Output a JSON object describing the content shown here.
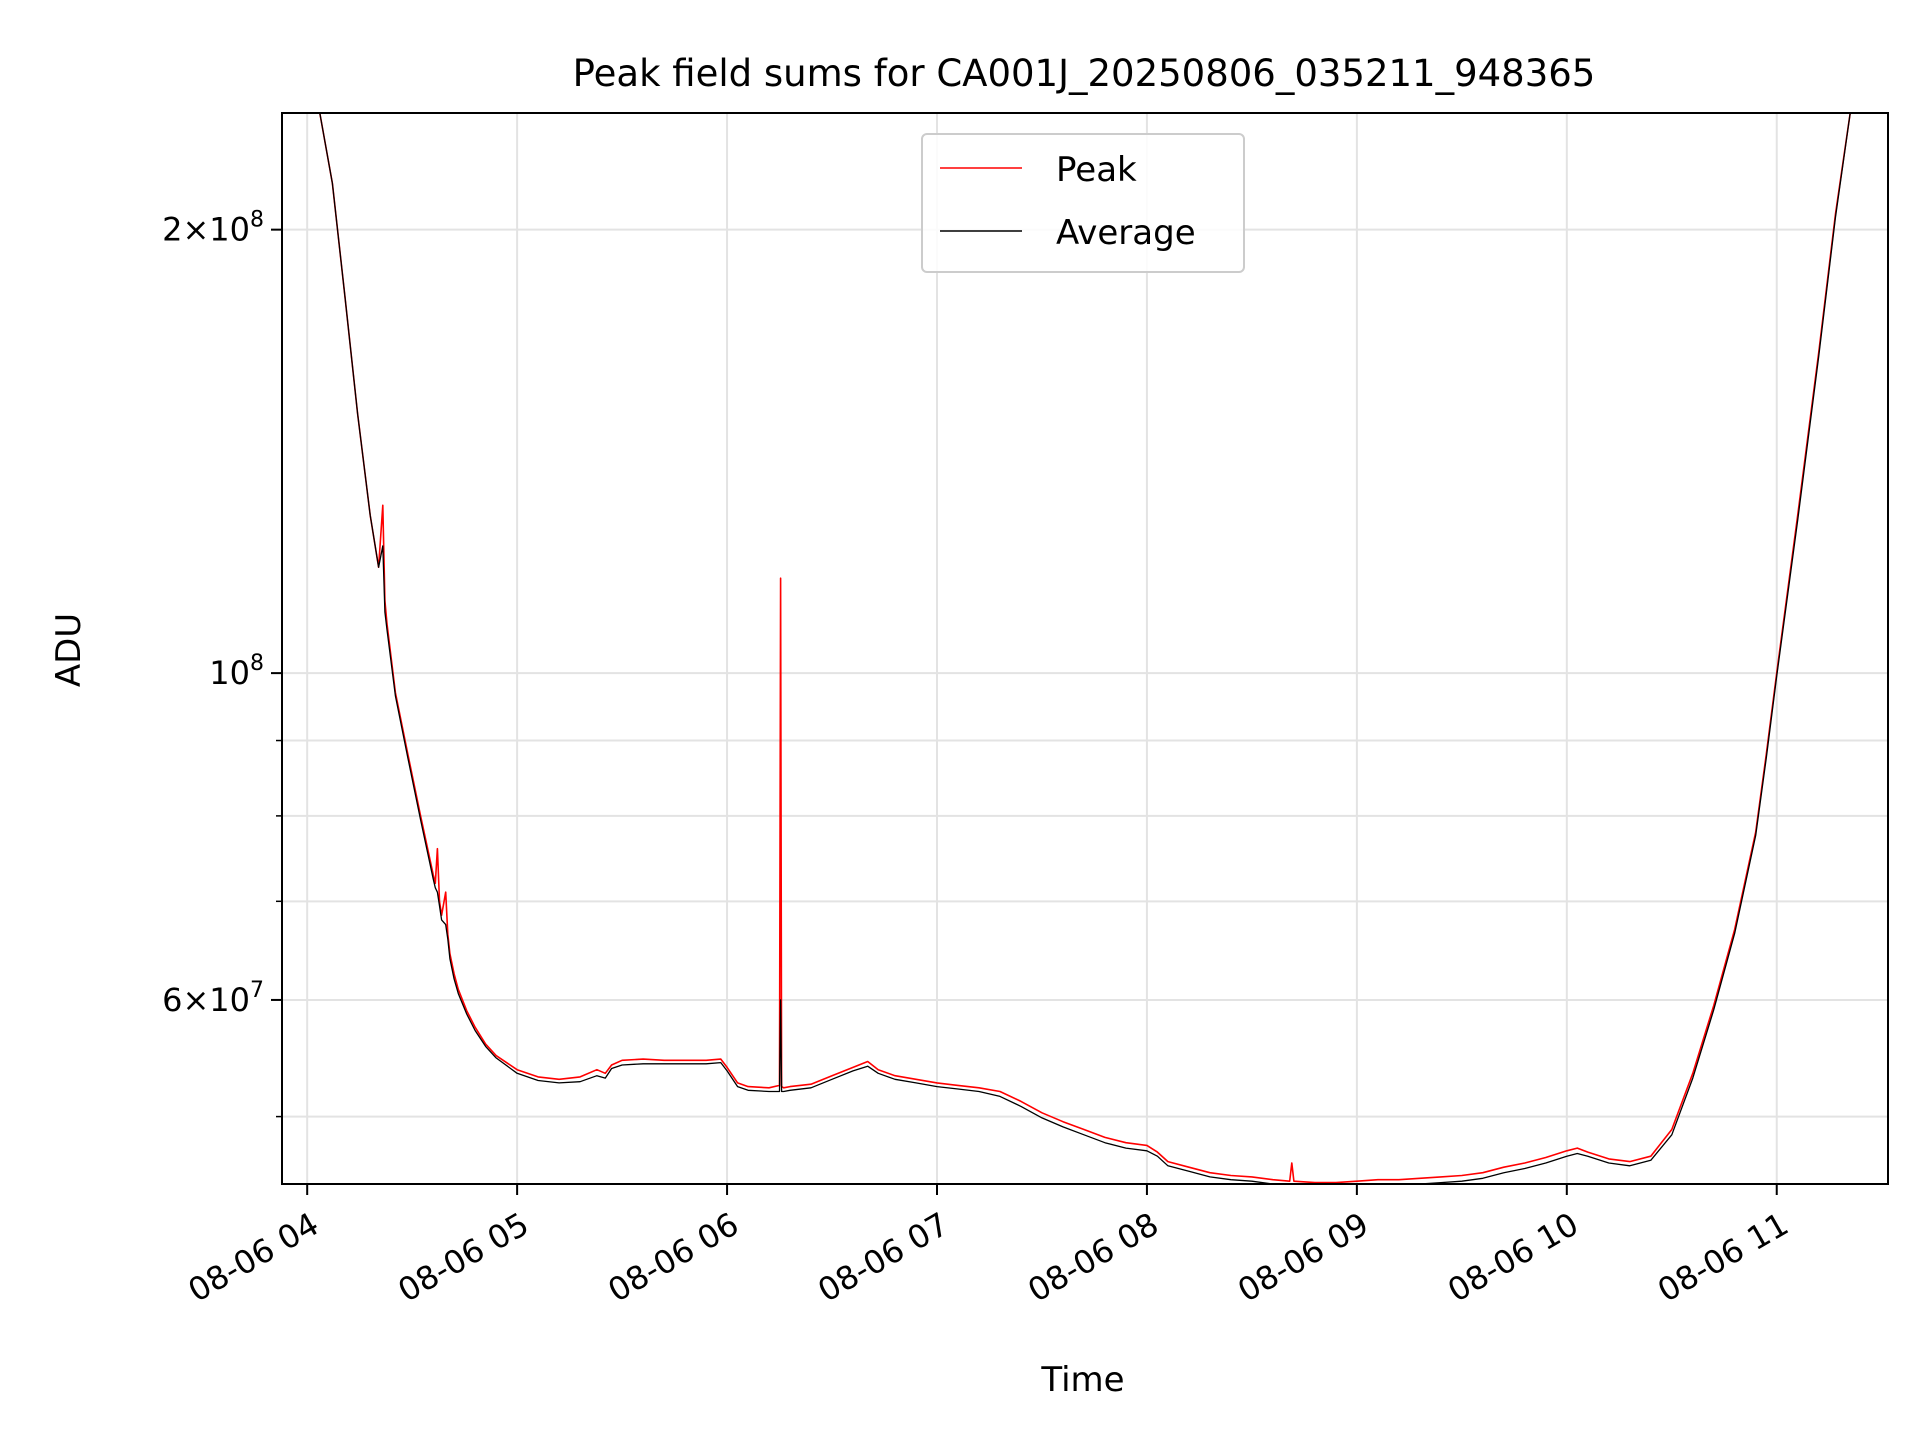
{
  "chart_data": {
    "type": "line",
    "title": "Peak field sums for CA001J_20250806_035211_948365",
    "xlabel": "Time",
    "ylabel": "ADU",
    "x_unit": "hour of 2025-08-06",
    "xlim": [
      3.88,
      11.53
    ],
    "ylim": [
      45000000,
      240000000
    ],
    "yscale": "log",
    "grid": true,
    "legend": {
      "position": "top-center",
      "entries": [
        "Peak",
        "Average"
      ]
    },
    "x_ticks": [
      {
        "value": 4,
        "label": "08-06 04"
      },
      {
        "value": 5,
        "label": "08-06 05"
      },
      {
        "value": 6,
        "label": "08-06 06"
      },
      {
        "value": 7,
        "label": "08-06 07"
      },
      {
        "value": 8,
        "label": "08-06 08"
      },
      {
        "value": 9,
        "label": "08-06 09"
      },
      {
        "value": 10,
        "label": "08-06 10"
      },
      {
        "value": 11,
        "label": "08-06 11"
      }
    ],
    "y_major_ticks": [
      {
        "value": 60000000,
        "mantissa": "6",
        "exponent": "7"
      },
      {
        "value": 100000000,
        "mantissa": "",
        "exponent": "8"
      },
      {
        "value": 200000000,
        "mantissa": "2",
        "exponent": "8"
      }
    ],
    "y_minor_ticks": [
      50000000,
      70000000,
      80000000,
      90000000
    ],
    "series": [
      {
        "name": "Peak",
        "color": "#ff0000",
        "x": [
          4.06,
          4.12,
          4.18,
          4.24,
          4.3,
          4.34,
          4.36,
          4.37,
          4.38,
          4.42,
          4.48,
          4.54,
          4.6,
          4.61,
          4.62,
          4.63,
          4.64,
          4.66,
          4.67,
          4.68,
          4.7,
          4.72,
          4.76,
          4.8,
          4.85,
          4.9,
          5.0,
          5.1,
          5.2,
          5.3,
          5.38,
          5.42,
          5.45,
          5.5,
          5.6,
          5.7,
          5.8,
          5.9,
          5.97,
          6.0,
          6.05,
          6.1,
          6.2,
          6.25,
          6.255,
          6.26,
          6.27,
          6.3,
          6.4,
          6.5,
          6.6,
          6.67,
          6.72,
          6.8,
          6.9,
          7.0,
          7.1,
          7.2,
          7.3,
          7.4,
          7.5,
          7.6,
          7.7,
          7.8,
          7.9,
          8.0,
          8.05,
          8.1,
          8.2,
          8.3,
          8.4,
          8.5,
          8.6,
          8.68,
          8.69,
          8.7,
          8.8,
          8.9,
          9.0,
          9.1,
          9.2,
          9.3,
          9.4,
          9.5,
          9.6,
          9.7,
          9.8,
          9.9,
          10.0,
          10.05,
          10.1,
          10.2,
          10.3,
          10.4,
          10.5,
          10.6,
          10.7,
          10.8,
          10.9,
          10.95,
          11.0,
          11.1,
          11.2,
          11.28,
          11.35
        ],
        "values": [
          240000000,
          215000000,
          180000000,
          150000000,
          128000000,
          118000000,
          130000000,
          112000000,
          108000000,
          97000000,
          88000000,
          80000000,
          73000000,
          72000000,
          76000000,
          70000000,
          68500000,
          71000000,
          66500000,
          64500000,
          62500000,
          61000000,
          59000000,
          57500000,
          56000000,
          55000000,
          53800000,
          53200000,
          53000000,
          53200000,
          53800000,
          53500000,
          54200000,
          54600000,
          54700000,
          54600000,
          54600000,
          54600000,
          54700000,
          54000000,
          52700000,
          52400000,
          52300000,
          52500000,
          116000000,
          52400000,
          52300000,
          52400000,
          52600000,
          53300000,
          54000000,
          54500000,
          53800000,
          53300000,
          53000000,
          52700000,
          52500000,
          52300000,
          52000000,
          51200000,
          50300000,
          49600000,
          49000000,
          48400000,
          48000000,
          47800000,
          47300000,
          46600000,
          46200000,
          45800000,
          45600000,
          45500000,
          45300000,
          45200000,
          46500000,
          45200000,
          45100000,
          45100000,
          45200000,
          45300000,
          45300000,
          45400000,
          45500000,
          45600000,
          45800000,
          46200000,
          46500000,
          46900000,
          47400000,
          47600000,
          47300000,
          46800000,
          46600000,
          47000000,
          49000000,
          53500000,
          59500000,
          67000000,
          78000000,
          88000000,
          100000000,
          128000000,
          165000000,
          205000000,
          240000000
        ]
      },
      {
        "name": "Average",
        "color": "#000000",
        "x": [
          4.06,
          4.12,
          4.18,
          4.24,
          4.3,
          4.34,
          4.36,
          4.37,
          4.38,
          4.42,
          4.48,
          4.54,
          4.6,
          4.61,
          4.62,
          4.63,
          4.64,
          4.66,
          4.67,
          4.68,
          4.7,
          4.72,
          4.76,
          4.8,
          4.85,
          4.9,
          5.0,
          5.1,
          5.2,
          5.3,
          5.38,
          5.42,
          5.45,
          5.5,
          5.6,
          5.7,
          5.8,
          5.9,
          5.97,
          6.0,
          6.05,
          6.1,
          6.2,
          6.25,
          6.255,
          6.26,
          6.27,
          6.3,
          6.4,
          6.5,
          6.6,
          6.67,
          6.72,
          6.8,
          6.9,
          7.0,
          7.1,
          7.2,
          7.3,
          7.4,
          7.5,
          7.6,
          7.7,
          7.8,
          7.9,
          8.0,
          8.05,
          8.1,
          8.2,
          8.3,
          8.4,
          8.5,
          8.6,
          8.68,
          8.69,
          8.7,
          8.8,
          8.9,
          9.0,
          9.1,
          9.2,
          9.3,
          9.4,
          9.5,
          9.6,
          9.7,
          9.8,
          9.9,
          10.0,
          10.05,
          10.1,
          10.2,
          10.3,
          10.4,
          10.5,
          10.6,
          10.7,
          10.8,
          10.9,
          10.95,
          11.0,
          11.1,
          11.2,
          11.28,
          11.35
        ],
        "values": [
          240000000,
          215000000,
          180000000,
          150000000,
          128000000,
          118000000,
          122000000,
          110000000,
          107000000,
          96500000,
          87500000,
          79500000,
          72500000,
          71500000,
          71000000,
          69500000,
          68000000,
          67500000,
          66000000,
          64000000,
          62000000,
          60600000,
          58700000,
          57200000,
          55800000,
          54800000,
          53500000,
          52900000,
          52700000,
          52800000,
          53300000,
          53100000,
          53900000,
          54200000,
          54300000,
          54300000,
          54300000,
          54300000,
          54400000,
          53700000,
          52400000,
          52100000,
          52000000,
          52000000,
          60000000,
          52000000,
          52000000,
          52100000,
          52300000,
          53000000,
          53700000,
          54100000,
          53500000,
          53000000,
          52700000,
          52400000,
          52200000,
          52000000,
          51600000,
          50800000,
          49900000,
          49200000,
          48600000,
          48000000,
          47600000,
          47400000,
          47000000,
          46300000,
          45900000,
          45500000,
          45300000,
          45200000,
          45000000,
          44900000,
          45000000,
          44900000,
          44800000,
          44800000,
          44800000,
          44900000,
          44900000,
          45000000,
          45100000,
          45200000,
          45400000,
          45800000,
          46100000,
          46500000,
          47000000,
          47200000,
          47000000,
          46500000,
          46300000,
          46700000,
          48600000,
          53100000,
          59100000,
          66600000,
          77600000,
          87500000,
          99500000,
          127000000,
          164000000,
          204000000,
          240000000
        ]
      }
    ]
  }
}
